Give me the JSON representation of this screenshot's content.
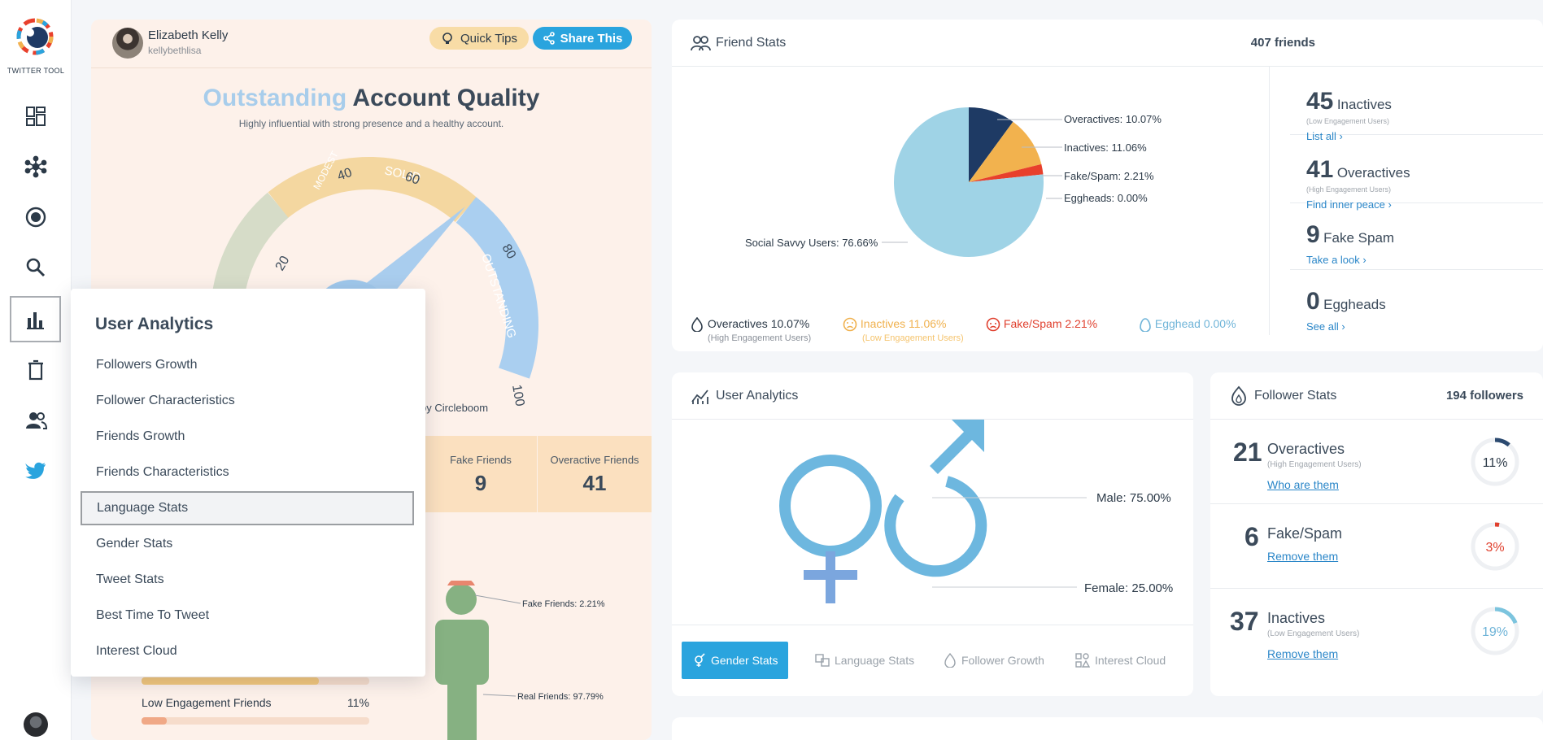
{
  "sidebar": {
    "logo_text": "TWITTER TOOL",
    "items": [
      {
        "name": "dashboard-icon"
      },
      {
        "name": "network-icon"
      },
      {
        "name": "target-icon"
      },
      {
        "name": "search-icon"
      },
      {
        "name": "bar-chart-icon"
      },
      {
        "name": "trash-icon"
      },
      {
        "name": "users-icon"
      },
      {
        "name": "twitter-bird-icon"
      }
    ]
  },
  "profile": {
    "name": "Elizabeth Kelly",
    "handle": "kellybethlisa"
  },
  "buttons": {
    "quick_tips": "Quick Tips",
    "share": "Share This"
  },
  "quality": {
    "title_highlight": "Outstanding",
    "title_rest": "Account Quality",
    "subtitle": "Highly influential with strong presence and a healthy account.",
    "gauge_ticks": [
      "20",
      "40",
      "60",
      "80",
      "100"
    ],
    "gauge_zones": [
      "MODEST",
      "SOLID",
      "OUTSTANDING"
    ],
    "by_text": "by Circleboom",
    "stats": [
      {
        "label": "Fake Friends",
        "value": "9"
      },
      {
        "label": "Overactive Friends",
        "value": "41"
      }
    ],
    "figure_labels": {
      "fake": "Fake Friends: 2.21%",
      "real": "Real Friends: 97.79%"
    },
    "bars": [
      {
        "label": "Low Engagement Friends",
        "value": "11%",
        "fraction": 0.11,
        "color": "#f0a886"
      }
    ],
    "bar_above_fraction": 0.78
  },
  "menu": {
    "title": "User Analytics",
    "items": [
      "Followers Growth",
      "Follower Characteristics",
      "Friends Growth",
      "Friends Characteristics",
      "Language Stats",
      "Gender Stats",
      "Tweet Stats",
      "Best Time To Tweet",
      "Interest Cloud"
    ],
    "highlighted_index": 4
  },
  "friend_stats": {
    "title": "Friend Stats",
    "count": "407 friends",
    "pie_labels": {
      "overactives": "Overactives: 10.07%",
      "inactives": "Inactives: 11.06%",
      "fake": "Fake/Spam: 2.21%",
      "eggheads": "Eggheads: 0.00%",
      "social": "Social Savvy Users: 76.66%"
    },
    "legend": [
      {
        "label": "Overactives 10.07%",
        "sub": "(High Engagement Users)",
        "color": "#2c3a48",
        "subcolor": "#8a9099"
      },
      {
        "label": "Inactives 11.06%",
        "sub": "(Low Engagement Users)",
        "color": "#f0b14e",
        "subcolor": "#f5c46e"
      },
      {
        "label": "Fake/Spam 2.21%",
        "sub": "",
        "color": "#e0402e",
        "subcolor": "#e0402e"
      },
      {
        "label": "Egghead 0.00%",
        "sub": "",
        "color": "#6fb4d8",
        "subcolor": "#6fb4d8"
      }
    ],
    "side": [
      {
        "num": "45",
        "label": "Inactives",
        "sub": "(Low Engagement Users)",
        "link": "List all ›"
      },
      {
        "num": "41",
        "label": "Overactives",
        "sub": "(High Engagement Users)",
        "link": "Find inner peace ›"
      },
      {
        "num": "9",
        "label": "Fake Spam",
        "sub": "",
        "link": "Take a look ›"
      },
      {
        "num": "0",
        "label": "Eggheads",
        "sub": "",
        "link": "See all ›"
      }
    ]
  },
  "user_analytics": {
    "title": "User Analytics",
    "male": "Male: 75.00%",
    "female": "Female: 25.00%",
    "tabs": [
      "Gender Stats",
      "Language Stats",
      "Follower Growth",
      "Interest Cloud"
    ]
  },
  "follower_stats": {
    "title": "Follower Stats",
    "count": "194 followers",
    "rows": [
      {
        "num": "21",
        "label": "Overactives",
        "sub": "(High Engagement Users)",
        "link": "Who are them",
        "pct": "11%",
        "fraction": 0.11,
        "color": "#2c4a70"
      },
      {
        "num": "6",
        "label": "Fake/Spam",
        "sub": "",
        "link": "Remove them",
        "pct": "3%",
        "fraction": 0.03,
        "color": "#e0402e"
      },
      {
        "num": "37",
        "label": "Inactives",
        "sub": "(Low Engagement Users)",
        "link": "Remove them",
        "pct": "19%",
        "fraction": 0.19,
        "color": "#7cc4de"
      }
    ]
  },
  "colors": {
    "accent": "#2aa4de",
    "pie_overactive": "#1e3a64",
    "pie_inactive": "#f2b24e",
    "pie_fake": "#e8402c",
    "pie_social": "#9fd3e6"
  }
}
